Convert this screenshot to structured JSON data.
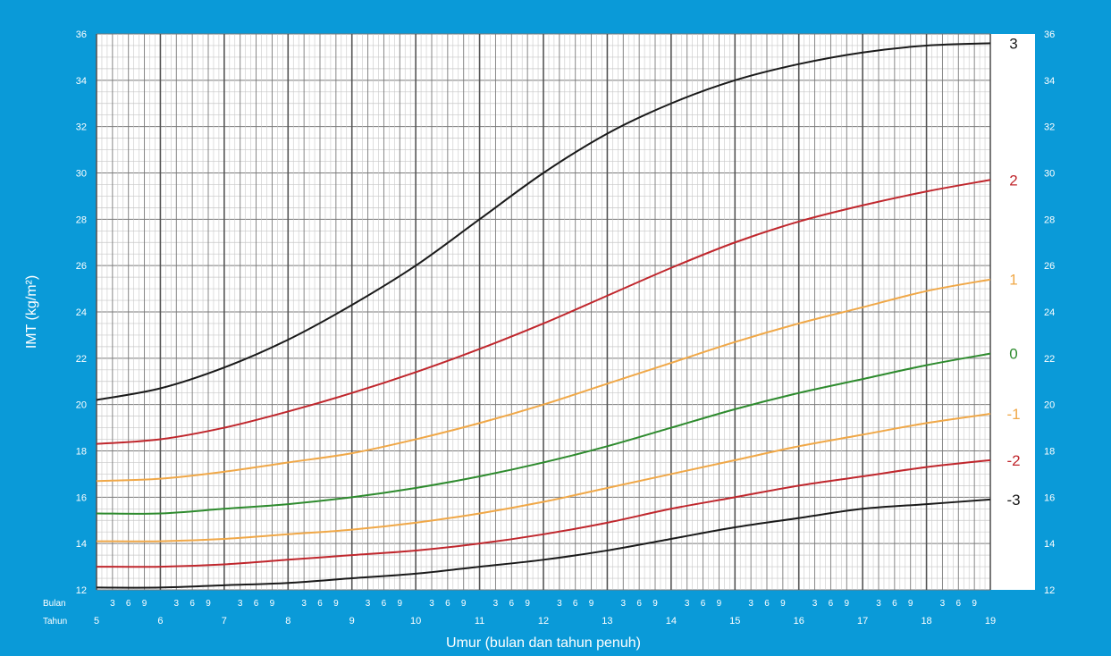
{
  "theme": {
    "background": "#0a9ad8",
    "plot_bg": "#ffffff",
    "grid_minor": "#c8c8c8",
    "grid_major": "#7a7a7a",
    "grid_year": "#555555"
  },
  "chart_data": {
    "type": "line",
    "title": "",
    "xlabel": "Umur (bulan dan tahun penuh)",
    "ylabel": "IMT (kg/m²)",
    "xlim": [
      5,
      19
    ],
    "ylim": [
      12,
      36
    ],
    "y_ticks": [
      12,
      14,
      16,
      18,
      20,
      22,
      24,
      26,
      28,
      30,
      32,
      34,
      36
    ],
    "x_year_ticks": [
      "5",
      "6",
      "7",
      "8",
      "9",
      "10",
      "11",
      "12",
      "13",
      "14",
      "15",
      "16",
      "17",
      "18",
      "19"
    ],
    "month_ticks": [
      "3",
      "6",
      "9"
    ],
    "row_labels": {
      "months": "Bulan",
      "years": "Tahun"
    },
    "grid": true,
    "series": [
      {
        "name": "3",
        "color": "#1a1a1a",
        "x": [
          5,
          6,
          7,
          8,
          9,
          10,
          11,
          12,
          13,
          14,
          15,
          16,
          17,
          18,
          19
        ],
        "y": [
          20.2,
          20.7,
          21.6,
          22.8,
          24.3,
          26.0,
          28.0,
          30.0,
          31.7,
          33.0,
          34.0,
          34.7,
          35.2,
          35.5,
          35.6
        ]
      },
      {
        "name": "2",
        "color": "#c0272d",
        "x": [
          5,
          6,
          7,
          8,
          9,
          10,
          11,
          12,
          13,
          14,
          15,
          16,
          17,
          18,
          19
        ],
        "y": [
          18.3,
          18.5,
          19.0,
          19.7,
          20.5,
          21.4,
          22.4,
          23.5,
          24.7,
          25.9,
          27.0,
          27.9,
          28.6,
          29.2,
          29.7
        ]
      },
      {
        "name": "1",
        "color": "#f0a848",
        "x": [
          5,
          6,
          7,
          8,
          9,
          10,
          11,
          12,
          13,
          14,
          15,
          16,
          17,
          18,
          19
        ],
        "y": [
          16.7,
          16.8,
          17.1,
          17.5,
          17.9,
          18.5,
          19.2,
          20.0,
          20.9,
          21.8,
          22.7,
          23.5,
          24.2,
          24.9,
          25.4
        ]
      },
      {
        "name": "0",
        "color": "#2e8b2e",
        "x": [
          5,
          6,
          7,
          8,
          9,
          10,
          11,
          12,
          13,
          14,
          15,
          16,
          17,
          18,
          19
        ],
        "y": [
          15.3,
          15.3,
          15.5,
          15.7,
          16.0,
          16.4,
          16.9,
          17.5,
          18.2,
          19.0,
          19.8,
          20.5,
          21.1,
          21.7,
          22.2
        ]
      },
      {
        "name": "-1",
        "color": "#f0a848",
        "x": [
          5,
          6,
          7,
          8,
          9,
          10,
          11,
          12,
          13,
          14,
          15,
          16,
          17,
          18,
          19
        ],
        "y": [
          14.1,
          14.1,
          14.2,
          14.4,
          14.6,
          14.9,
          15.3,
          15.8,
          16.4,
          17.0,
          17.6,
          18.2,
          18.7,
          19.2,
          19.6
        ]
      },
      {
        "name": "-2",
        "color": "#c0272d",
        "x": [
          5,
          6,
          7,
          8,
          9,
          10,
          11,
          12,
          13,
          14,
          15,
          16,
          17,
          18,
          19
        ],
        "y": [
          13.0,
          13.0,
          13.1,
          13.3,
          13.5,
          13.7,
          14.0,
          14.4,
          14.9,
          15.5,
          16.0,
          16.5,
          16.9,
          17.3,
          17.6
        ]
      },
      {
        "name": "-3",
        "color": "#1a1a1a",
        "x": [
          5,
          6,
          7,
          8,
          9,
          10,
          11,
          12,
          13,
          14,
          15,
          16,
          17,
          18,
          19
        ],
        "y": [
          12.1,
          12.1,
          12.2,
          12.3,
          12.5,
          12.7,
          13.0,
          13.3,
          13.7,
          14.2,
          14.7,
          15.1,
          15.5,
          15.7,
          15.9
        ]
      }
    ]
  }
}
